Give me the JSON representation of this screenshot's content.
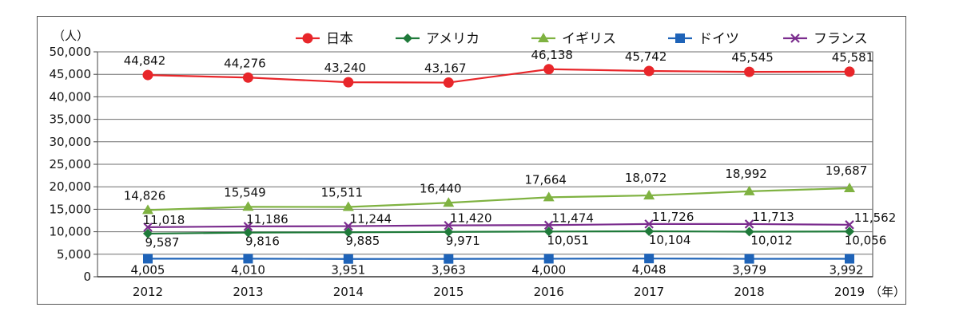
{
  "chart_data": {
    "type": "line",
    "ylabel": "（人）",
    "xlabel": "（年）",
    "ylim": [
      0,
      50000
    ],
    "yticks": [
      "0",
      "5,000",
      "10,000",
      "15,000",
      "20,000",
      "25,000",
      "30,000",
      "35,000",
      "40,000",
      "45,000",
      "50,000"
    ],
    "categories": [
      "2012",
      "2013",
      "2014",
      "2015",
      "2016",
      "2017",
      "2018",
      "2019"
    ],
    "grid": true,
    "legend_position": "top",
    "series": [
      {
        "name": "日本",
        "color": "#e8262a",
        "marker": "circle",
        "values": [
          44842,
          44276,
          43240,
          43167,
          46138,
          45742,
          45545,
          45581
        ],
        "labels": [
          "44,842",
          "44,276",
          "43,240",
          "43,167",
          "46,138",
          "45,742",
          "45,545",
          "45,581"
        ]
      },
      {
        "name": "アメリカ",
        "color": "#1f7a3a",
        "marker": "diamond",
        "values": [
          9587,
          9816,
          9885,
          9971,
          10051,
          10104,
          10012,
          10056
        ],
        "labels": [
          "9,587",
          "9,816",
          "9,885",
          "9,971",
          "10,051",
          "10,104",
          "10,012",
          "10,056"
        ]
      },
      {
        "name": "イギリス",
        "color": "#7fb241",
        "marker": "triangle",
        "values": [
          14826,
          15549,
          15511,
          16440,
          17664,
          18072,
          18992,
          19687
        ],
        "labels": [
          "14,826",
          "15,549",
          "15,511",
          "16,440",
          "17,664",
          "18,072",
          "18,992",
          "19,687"
        ]
      },
      {
        "name": "ドイツ",
        "color": "#1e63b8",
        "marker": "square",
        "values": [
          4005,
          4010,
          3951,
          3963,
          4000,
          4048,
          3979,
          3992
        ],
        "labels": [
          "4,005",
          "4,010",
          "3,951",
          "3,963",
          "4,000",
          "4,048",
          "3,979",
          "3,992"
        ]
      },
      {
        "name": "フランス",
        "color": "#7b2d8e",
        "marker": "x",
        "values": [
          11018,
          11186,
          11244,
          11420,
          11474,
          11726,
          11713,
          11562
        ],
        "labels": [
          "11,018",
          "11,186",
          "11,244",
          "11,420",
          "11,474",
          "11,726",
          "11,713",
          "11,562"
        ]
      }
    ]
  }
}
